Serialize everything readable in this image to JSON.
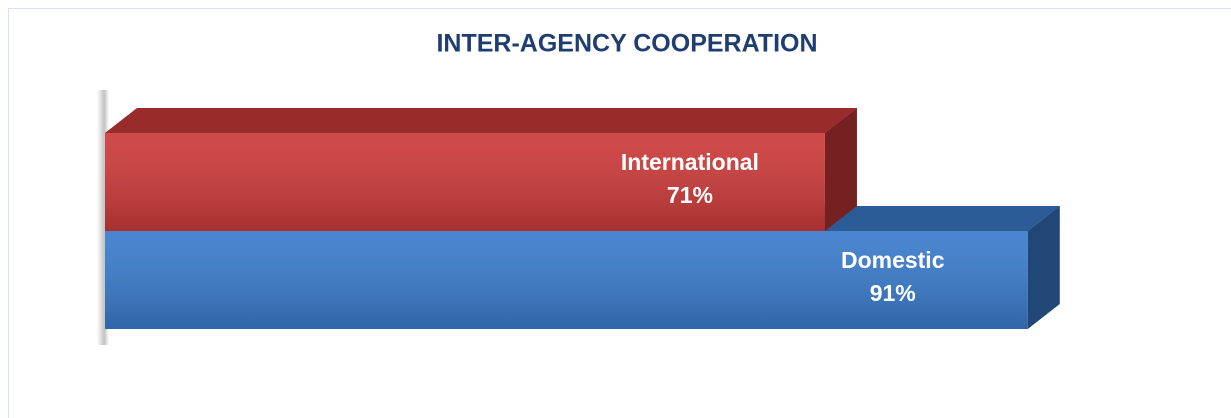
{
  "chart_data": {
    "type": "bar3d",
    "orientation": "horizontal",
    "title": "INTER-AGENCY COOPERATION",
    "categories": [
      "International",
      "Domestic"
    ],
    "values": [
      71,
      91
    ],
    "value_labels": [
      "71%",
      "91%"
    ],
    "colors": [
      "#cc3a3a",
      "#3a7bcb"
    ]
  }
}
